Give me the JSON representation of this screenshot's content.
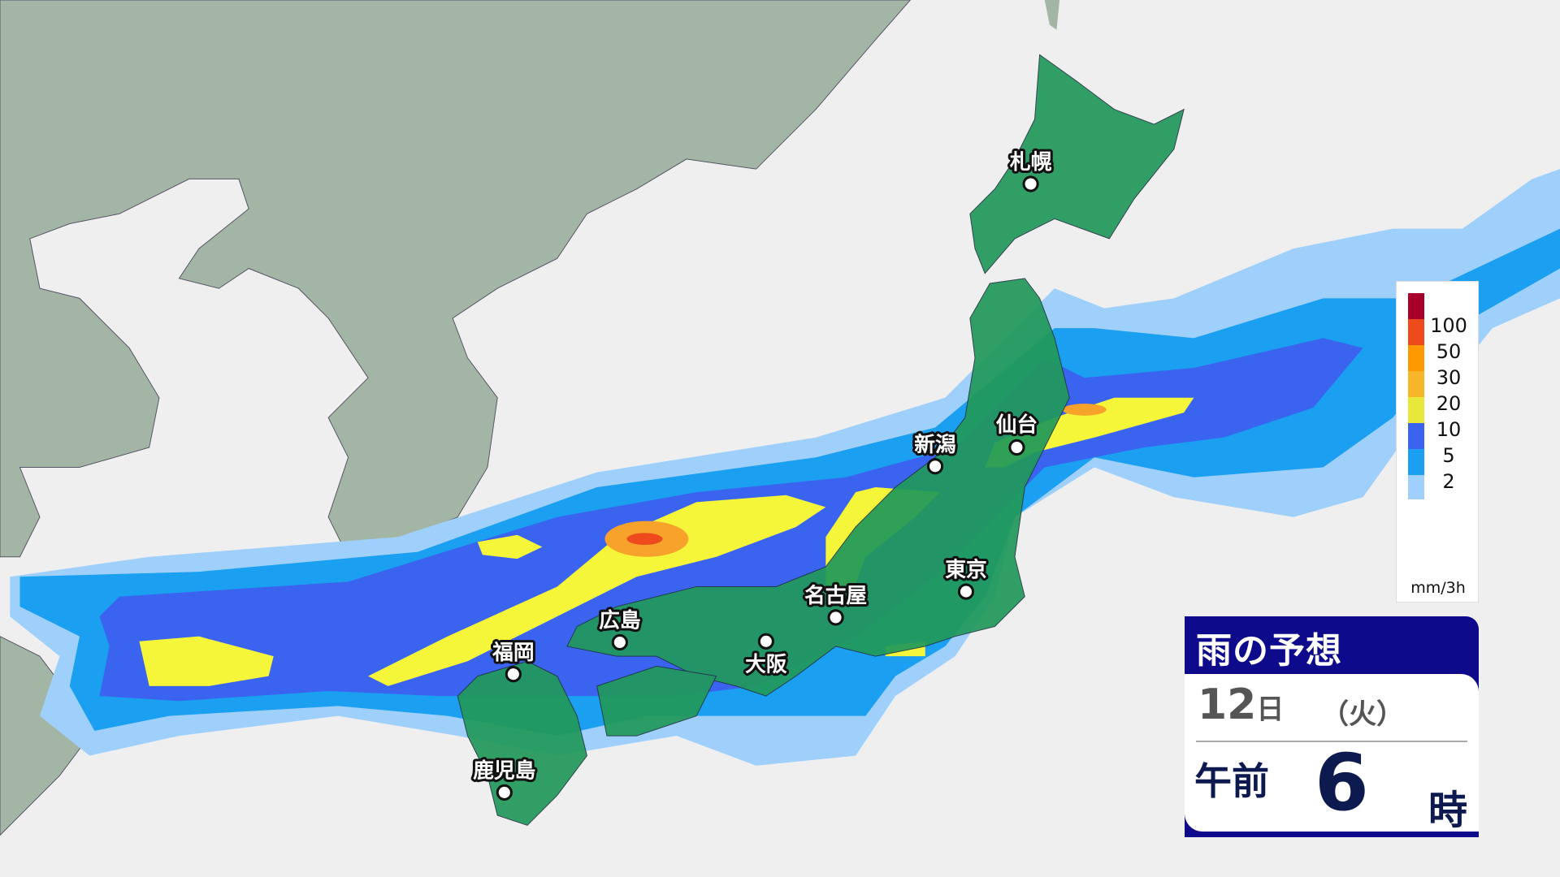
{
  "title": "雨の予想",
  "forecast": {
    "day": "12",
    "day_unit": "日",
    "weekday": "（火）",
    "ampm": "午前",
    "hour": "6",
    "hour_unit": "時"
  },
  "legend": {
    "unit": "mm/3h",
    "levels": [
      "100",
      "50",
      "30",
      "20",
      "10",
      "5",
      "2"
    ],
    "colors": [
      "#a6002a",
      "#ee4a1e",
      "#ff9900",
      "#f7b52a",
      "#e8e83a",
      "#3a64f0",
      "#1b9ff0",
      "#9fd0fb"
    ]
  },
  "cities": [
    {
      "name": "札幌"
    },
    {
      "name": "仙台"
    },
    {
      "name": "新潟"
    },
    {
      "name": "東京"
    },
    {
      "name": "名古屋"
    },
    {
      "name": "大阪"
    },
    {
      "name": "広島"
    },
    {
      "name": "福岡"
    },
    {
      "name": "鹿児島"
    }
  ],
  "colors": {
    "sea": "#efefef",
    "continent": "#a3b5a5",
    "japan": "#21995a",
    "rain_light": "#9fd0fb",
    "rain_2": "#1b9ff0",
    "rain_5": "#3a64f0",
    "rain_10": "#f5f53a",
    "rain_30": "#f7a22a",
    "rain_50": "#ee4a1e"
  }
}
